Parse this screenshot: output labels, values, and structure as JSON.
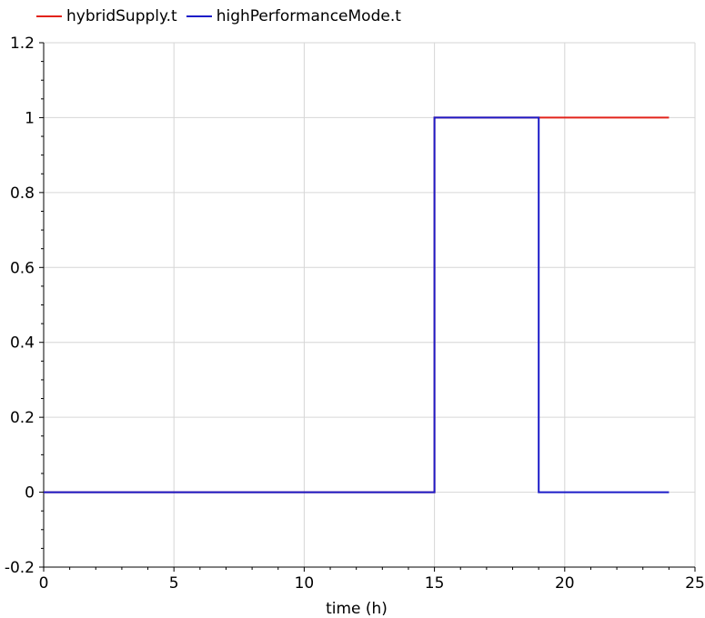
{
  "chart_data": {
    "type": "line",
    "title": "",
    "xlabel": "time (h)",
    "ylabel": "",
    "xlim": [
      0,
      25
    ],
    "ylim": [
      -0.2,
      1.2
    ],
    "xticks": [
      0,
      5,
      10,
      15,
      20,
      25
    ],
    "xtick_labels": [
      "0",
      "5",
      "10",
      "15",
      "20",
      "25"
    ],
    "yticks": [
      -0.2,
      0,
      0.2,
      0.4,
      0.6,
      0.8,
      1,
      1.2
    ],
    "ytick_labels": [
      "-0.2",
      "0",
      "0.2",
      "0.4",
      "0.6",
      "0.8",
      "1",
      "1.2"
    ],
    "grid": true,
    "legend_position": "top-left",
    "series": [
      {
        "name": "hybridSupply.t",
        "color": "#e2231a",
        "step": true,
        "x": [
          0,
          15,
          15,
          24
        ],
        "y": [
          0,
          0,
          1,
          1
        ]
      },
      {
        "name": "highPerformanceMode.t",
        "color": "#1c1cc8",
        "step": true,
        "x": [
          0,
          15,
          15,
          19,
          19,
          24
        ],
        "y": [
          0,
          0,
          1,
          1,
          0,
          0
        ]
      }
    ]
  }
}
